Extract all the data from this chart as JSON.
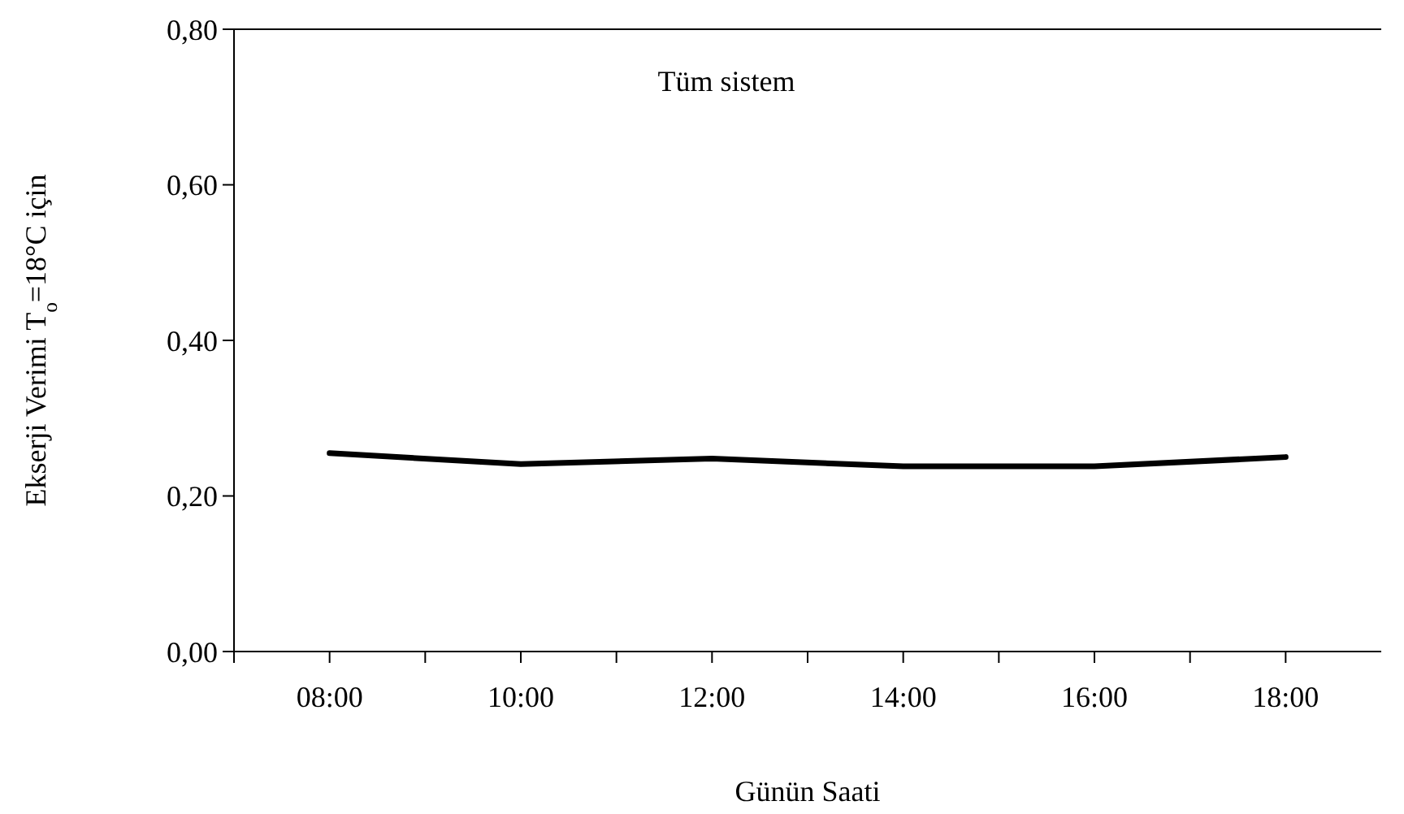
{
  "chart_data": {
    "type": "line",
    "title": "Tüm sistem",
    "xlabel": "Günün Saati",
    "ylabel": "Ekserji Verimi T$_{o}$=18°C için",
    "x": [
      8,
      10,
      12,
      14,
      16,
      18
    ],
    "series": [
      {
        "color": "#000000",
        "values": [
          0.255,
          0.241,
          0.248,
          0.238,
          0.238,
          0.25
        ]
      }
    ],
    "xlim": [
      7,
      19
    ],
    "xticks": [
      {
        "value": 7,
        "label": null
      },
      {
        "value": 8,
        "label": "08:00"
      },
      {
        "value": 9,
        "label": null
      },
      {
        "value": 10,
        "label": "10:00"
      },
      {
        "value": 11,
        "label": null
      },
      {
        "value": 12,
        "label": "12:00"
      },
      {
        "value": 13,
        "label": null
      },
      {
        "value": 14,
        "label": "14:00"
      },
      {
        "value": 15,
        "label": null
      },
      {
        "value": 16,
        "label": "16:00"
      },
      {
        "value": 17,
        "label": null
      },
      {
        "value": 18,
        "label": "18:00"
      }
    ],
    "ylim": [
      0,
      0.8
    ],
    "yticks": [
      {
        "value": 0,
        "label": "0,00"
      },
      {
        "value": 0.2,
        "label": "0,20"
      },
      {
        "value": 0.4,
        "label": "0,40"
      },
      {
        "value": 0.6,
        "label": "0,60"
      },
      {
        "value": 0.8,
        "label": "0,80"
      }
    ],
    "grid": false,
    "marker": "none",
    "line_style": "solid"
  }
}
